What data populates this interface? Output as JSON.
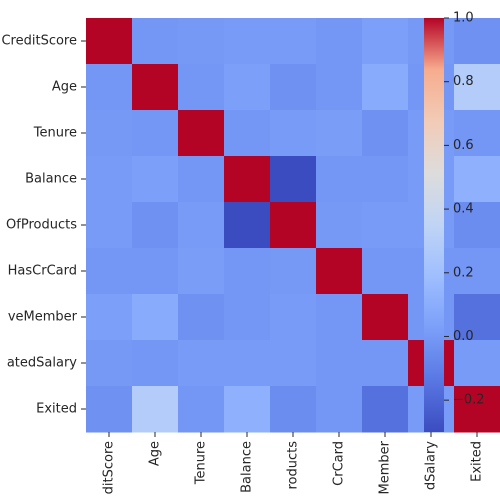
{
  "chart_data": {
    "type": "heatmap",
    "title": "",
    "xlabel": "",
    "ylabel": "",
    "x_tick_labels": [
      "ditScore",
      "Age",
      "Tenure",
      "Balance",
      "roducts",
      "CrCard",
      "Member",
      "dSalary",
      "Exited"
    ],
    "y_tick_labels": [
      "CreditScore",
      "Age",
      "Tenure",
      "Balance",
      "OfProducts",
      "HasCrCard",
      "veMember",
      "atedSalary",
      "Exited"
    ],
    "colorbar": {
      "colormap": "coolwarm",
      "vmin": -0.3,
      "vmax": 1.0,
      "ticks": [
        -0.2,
        0.0,
        0.2,
        0.4,
        0.6,
        0.8,
        1.0
      ],
      "tick_labels": [
        "−0.2",
        "0.0",
        "0.2",
        "0.4",
        "0.6",
        "0.8",
        "1.0"
      ]
    },
    "values": [
      [
        1.0,
        -0.01,
        0.0,
        0.01,
        0.01,
        -0.01,
        0.03,
        0.0,
        -0.03
      ],
      [
        -0.01,
        1.0,
        -0.01,
        0.03,
        -0.03,
        -0.01,
        0.09,
        -0.01,
        0.29
      ],
      [
        0.0,
        -0.01,
        1.0,
        -0.01,
        0.01,
        0.02,
        -0.03,
        0.01,
        -0.01
      ],
      [
        0.01,
        0.03,
        -0.01,
        1.0,
        -0.3,
        -0.01,
        -0.01,
        0.01,
        0.12
      ],
      [
        0.01,
        -0.03,
        0.01,
        -0.3,
        1.0,
        0.0,
        0.01,
        0.01,
        -0.05
      ],
      [
        -0.01,
        -0.01,
        0.02,
        -0.01,
        0.0,
        1.0,
        -0.01,
        -0.01,
        -0.01
      ],
      [
        0.03,
        0.09,
        -0.03,
        -0.01,
        0.01,
        -0.01,
        1.0,
        -0.01,
        -0.16
      ],
      [
        0.0,
        -0.01,
        0.01,
        0.01,
        0.01,
        -0.01,
        -0.01,
        1.0,
        0.01
      ],
      [
        -0.03,
        0.29,
        -0.01,
        0.12,
        -0.05,
        -0.01,
        -0.16,
        0.01,
        1.0
      ]
    ]
  }
}
